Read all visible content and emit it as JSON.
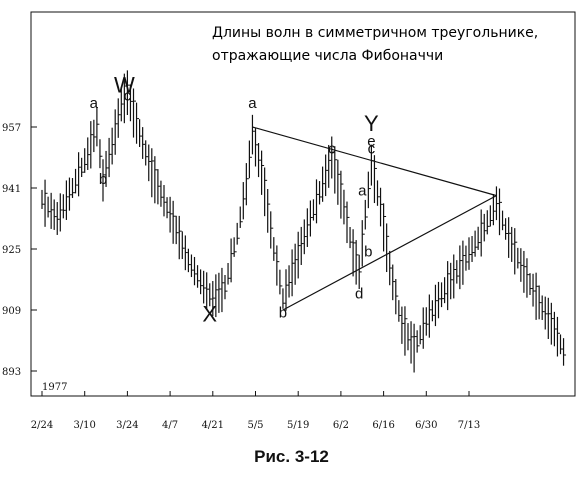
{
  "chart_data": {
    "type": "bar",
    "subtype": "ohlc-price-bars",
    "title_lines": [
      "Длины волн в симметричном треугольнике,",
      "отражающие числа Фибоначчи"
    ],
    "year_label": "1977",
    "x_tick_labels": [
      "2/24",
      "3/10",
      "3/24",
      "4/7",
      "4/21",
      "5/5",
      "5/19",
      "6/2",
      "6/16",
      "6/30",
      "7/13"
    ],
    "y_tick_labels": [
      "957",
      "941",
      "925",
      "909",
      "893"
    ],
    "y_ticks": [
      957,
      941,
      925,
      909,
      893
    ],
    "ylim": [
      888,
      970
    ],
    "grid": false,
    "wave_labels": [
      {
        "text": "W",
        "x": 27,
        "y": 966
      },
      {
        "text": "c",
        "x": 28,
        "y": 964
      },
      {
        "text": "a",
        "x": 17,
        "y": 962
      },
      {
        "text": "b",
        "x": 20,
        "y": 942
      },
      {
        "text": "X",
        "x": 55,
        "y": 906
      },
      {
        "text": "a",
        "x": 69,
        "y": 962
      },
      {
        "text": "b",
        "x": 79,
        "y": 907
      },
      {
        "text": "c",
        "x": 95,
        "y": 950
      },
      {
        "text": "d",
        "x": 104,
        "y": 912
      },
      {
        "text": "Y",
        "x": 108,
        "y": 956
      },
      {
        "text": "e",
        "x": 108,
        "y": 952
      },
      {
        "text": "c",
        "x": 108,
        "y": 950
      },
      {
        "text": "a",
        "x": 105,
        "y": 939
      },
      {
        "text": "b",
        "x": 107,
        "y": 923
      }
    ],
    "triangle_lines": [
      {
        "from": [
          69,
          957
        ],
        "to": [
          149,
          939
        ]
      },
      {
        "from": [
          79,
          909
        ],
        "to": [
          149,
          939
        ]
      }
    ],
    "price_path": [
      [
        0,
        938
      ],
      [
        5,
        933
      ],
      [
        10,
        941
      ],
      [
        15,
        950
      ],
      [
        18,
        957
      ],
      [
        20,
        943
      ],
      [
        23,
        952
      ],
      [
        26,
        963
      ],
      [
        28,
        966
      ],
      [
        31,
        958
      ],
      [
        36,
        945
      ],
      [
        42,
        934
      ],
      [
        48,
        922
      ],
      [
        53,
        915
      ],
      [
        56,
        912
      ],
      [
        60,
        915
      ],
      [
        64,
        929
      ],
      [
        67,
        942
      ],
      [
        69,
        955
      ],
      [
        72,
        945
      ],
      [
        76,
        925
      ],
      [
        79,
        912
      ],
      [
        83,
        921
      ],
      [
        88,
        933
      ],
      [
        92,
        942
      ],
      [
        95,
        949
      ],
      [
        99,
        936
      ],
      [
        102,
        924
      ],
      [
        104,
        919
      ],
      [
        106,
        934
      ],
      [
        108,
        947
      ],
      [
        111,
        936
      ],
      [
        114,
        920
      ],
      [
        118,
        905
      ],
      [
        122,
        899
      ],
      [
        126,
        906
      ],
      [
        131,
        913
      ],
      [
        136,
        919
      ],
      [
        141,
        925
      ],
      [
        146,
        932
      ],
      [
        149,
        937
      ],
      [
        153,
        928
      ],
      [
        158,
        919
      ],
      [
        163,
        911
      ],
      [
        168,
        904
      ],
      [
        171,
        898
      ]
    ]
  },
  "caption": "Рис. 3-12"
}
